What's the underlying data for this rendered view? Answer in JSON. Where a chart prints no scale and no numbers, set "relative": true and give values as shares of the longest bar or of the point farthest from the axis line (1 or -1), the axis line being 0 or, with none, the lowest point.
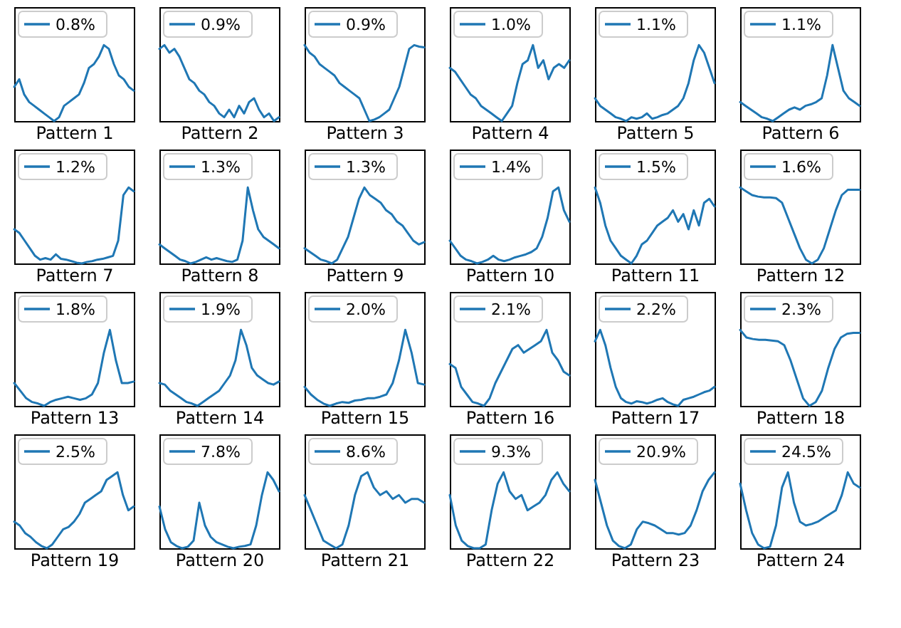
{
  "chart_data": [
    {
      "type": "line",
      "relative": true,
      "legend": "top left",
      "xlabel": "Pattern 1",
      "categories": [
        null,
        null,
        null,
        null,
        null,
        null,
        null,
        null,
        null,
        null,
        null,
        null,
        null,
        null,
        null,
        null,
        null,
        null,
        null,
        null,
        null,
        null,
        null,
        null,
        null
      ],
      "series": [
        {
          "name": "0.8%",
          "color": "#1f77b4",
          "values": [
            0.45,
            0.55,
            0.35,
            0.25,
            0.2,
            0.15,
            0.1,
            0.05,
            0.0,
            0.05,
            0.2,
            0.25,
            0.3,
            0.35,
            0.5,
            0.7,
            0.75,
            0.85,
            1.0,
            0.95,
            0.75,
            0.6,
            0.55,
            0.45,
            0.4
          ]
        }
      ]
    },
    {
      "type": "line",
      "relative": true,
      "legend": "top left",
      "xlabel": "Pattern 2",
      "categories": [
        null,
        null,
        null,
        null,
        null,
        null,
        null,
        null,
        null,
        null,
        null,
        null,
        null,
        null,
        null,
        null,
        null,
        null,
        null,
        null,
        null,
        null,
        null,
        null,
        null
      ],
      "series": [
        {
          "name": "0.9%",
          "color": "#1f77b4",
          "values": [
            0.95,
            1.0,
            0.9,
            0.95,
            0.85,
            0.7,
            0.55,
            0.5,
            0.4,
            0.35,
            0.25,
            0.2,
            0.1,
            0.05,
            0.15,
            0.05,
            0.2,
            0.1,
            0.25,
            0.3,
            0.15,
            0.05,
            0.1,
            0.0,
            0.05
          ]
        }
      ]
    },
    {
      "type": "line",
      "relative": true,
      "legend": "top left",
      "xlabel": "Pattern 3",
      "categories": [
        null,
        null,
        null,
        null,
        null,
        null,
        null,
        null,
        null,
        null,
        null,
        null,
        null,
        null,
        null,
        null,
        null,
        null,
        null,
        null,
        null,
        null,
        null,
        null,
        null
      ],
      "series": [
        {
          "name": "0.9%",
          "color": "#1f77b4",
          "values": [
            1.0,
            0.9,
            0.85,
            0.75,
            0.7,
            0.65,
            0.6,
            0.5,
            0.45,
            0.4,
            0.35,
            0.3,
            0.15,
            0.0,
            0.02,
            0.05,
            0.1,
            0.15,
            0.3,
            0.45,
            0.7,
            0.95,
            1.0,
            0.98,
            0.97
          ]
        }
      ]
    },
    {
      "type": "line",
      "relative": true,
      "legend": "top left",
      "xlabel": "Pattern 4",
      "categories": [
        null,
        null,
        null,
        null,
        null,
        null,
        null,
        null,
        null,
        null,
        null,
        null,
        null,
        null,
        null,
        null,
        null,
        null,
        null,
        null,
        null,
        null,
        null,
        null
      ],
      "series": [
        {
          "name": "1.0%",
          "color": "#1f77b4",
          "values": [
            0.7,
            0.65,
            0.55,
            0.45,
            0.35,
            0.3,
            0.2,
            0.15,
            0.1,
            0.05,
            0.0,
            0.1,
            0.2,
            0.5,
            0.75,
            0.8,
            1.0,
            0.7,
            0.8,
            0.55,
            0.7,
            0.75,
            0.7,
            0.8
          ]
        }
      ]
    },
    {
      "type": "line",
      "relative": true,
      "legend": "top left",
      "xlabel": "Pattern 5",
      "categories": [
        null,
        null,
        null,
        null,
        null,
        null,
        null,
        null,
        null,
        null,
        null,
        null,
        null,
        null,
        null,
        null,
        null,
        null,
        null,
        null,
        null,
        null,
        null,
        null
      ],
      "series": [
        {
          "name": "1.1%",
          "color": "#1f77b4",
          "values": [
            0.3,
            0.2,
            0.15,
            0.1,
            0.05,
            0.03,
            0.0,
            0.05,
            0.03,
            0.05,
            0.1,
            0.03,
            0.05,
            0.08,
            0.1,
            0.15,
            0.2,
            0.3,
            0.5,
            0.8,
            1.0,
            0.9,
            0.7,
            0.5
          ]
        }
      ]
    },
    {
      "type": "line",
      "relative": true,
      "legend": "top left",
      "xlabel": "Pattern 6",
      "categories": [
        null,
        null,
        null,
        null,
        null,
        null,
        null,
        null,
        null,
        null,
        null,
        null,
        null,
        null,
        null,
        null,
        null,
        null,
        null,
        null,
        null,
        null,
        null
      ],
      "series": [
        {
          "name": "1.1%",
          "color": "#1f77b4",
          "values": [
            0.25,
            0.2,
            0.15,
            0.1,
            0.05,
            0.03,
            0.0,
            0.05,
            0.1,
            0.15,
            0.18,
            0.15,
            0.2,
            0.22,
            0.25,
            0.3,
            0.6,
            1.0,
            0.7,
            0.4,
            0.3,
            0.25,
            0.2
          ]
        }
      ]
    },
    {
      "type": "line",
      "relative": true,
      "legend": "top left",
      "xlabel": "Pattern 7",
      "categories": [
        null,
        null,
        null,
        null,
        null,
        null,
        null,
        null,
        null,
        null,
        null,
        null,
        null,
        null,
        null,
        null,
        null,
        null,
        null,
        null,
        null,
        null,
        null,
        null
      ],
      "series": [
        {
          "name": "1.2%",
          "color": "#1f77b4",
          "values": [
            0.45,
            0.4,
            0.3,
            0.2,
            0.1,
            0.05,
            0.07,
            0.05,
            0.12,
            0.06,
            0.05,
            0.03,
            0.01,
            0.0,
            0.02,
            0.03,
            0.05,
            0.06,
            0.08,
            0.1,
            0.3,
            0.9,
            1.0,
            0.95
          ]
        }
      ]
    },
    {
      "type": "line",
      "relative": true,
      "legend": "top left",
      "xlabel": "Pattern 8",
      "categories": [
        null,
        null,
        null,
        null,
        null,
        null,
        null,
        null,
        null,
        null,
        null,
        null,
        null,
        null,
        null,
        null,
        null,
        null,
        null,
        null,
        null,
        null,
        null,
        null
      ],
      "series": [
        {
          "name": "1.3%",
          "color": "#1f77b4",
          "values": [
            0.25,
            0.2,
            0.15,
            0.1,
            0.05,
            0.03,
            0.0,
            0.02,
            0.05,
            0.08,
            0.05,
            0.07,
            0.05,
            0.03,
            0.02,
            0.05,
            0.3,
            1.0,
            0.7,
            0.45,
            0.35,
            0.3,
            0.25,
            0.2
          ]
        }
      ]
    },
    {
      "type": "line",
      "relative": true,
      "legend": "top left",
      "xlabel": "Pattern 9",
      "categories": [
        null,
        null,
        null,
        null,
        null,
        null,
        null,
        null,
        null,
        null,
        null,
        null,
        null,
        null,
        null,
        null,
        null,
        null,
        null,
        null,
        null,
        null,
        null
      ],
      "series": [
        {
          "name": "1.3%",
          "color": "#1f77b4",
          "values": [
            0.2,
            0.15,
            0.1,
            0.05,
            0.03,
            0.0,
            0.05,
            0.2,
            0.35,
            0.6,
            0.85,
            1.0,
            0.9,
            0.85,
            0.8,
            0.7,
            0.65,
            0.55,
            0.5,
            0.4,
            0.3,
            0.25,
            0.28
          ]
        }
      ]
    },
    {
      "type": "line",
      "relative": true,
      "legend": "top left",
      "xlabel": "Pattern 10",
      "categories": [
        null,
        null,
        null,
        null,
        null,
        null,
        null,
        null,
        null,
        null,
        null,
        null,
        null,
        null,
        null,
        null,
        null,
        null,
        null,
        null,
        null,
        null,
        null
      ],
      "series": [
        {
          "name": "1.4%",
          "color": "#1f77b4",
          "values": [
            0.3,
            0.2,
            0.1,
            0.05,
            0.03,
            0.0,
            0.02,
            0.05,
            0.1,
            0.05,
            0.03,
            0.05,
            0.08,
            0.1,
            0.12,
            0.15,
            0.2,
            0.35,
            0.6,
            0.95,
            1.0,
            0.7,
            0.55
          ]
        }
      ]
    },
    {
      "type": "line",
      "relative": true,
      "legend": "top left",
      "xlabel": "Pattern 11",
      "categories": [
        null,
        null,
        null,
        null,
        null,
        null,
        null,
        null,
        null,
        null,
        null,
        null,
        null,
        null,
        null,
        null,
        null,
        null,
        null,
        null,
        null,
        null,
        null,
        null
      ],
      "series": [
        {
          "name": "1.5%",
          "color": "#1f77b4",
          "values": [
            1.0,
            0.8,
            0.5,
            0.3,
            0.2,
            0.1,
            0.05,
            0.0,
            0.1,
            0.25,
            0.3,
            0.4,
            0.5,
            0.55,
            0.6,
            0.7,
            0.55,
            0.65,
            0.45,
            0.7,
            0.5,
            0.8,
            0.85,
            0.75
          ]
        }
      ]
    },
    {
      "type": "line",
      "relative": true,
      "legend": "top left",
      "xlabel": "Pattern 12",
      "categories": [
        null,
        null,
        null,
        null,
        null,
        null,
        null,
        null,
        null,
        null,
        null,
        null,
        null,
        null,
        null,
        null,
        null,
        null,
        null,
        null,
        null
      ],
      "series": [
        {
          "name": "1.6%",
          "color": "#1f77b4",
          "values": [
            1.0,
            0.95,
            0.9,
            0.88,
            0.87,
            0.87,
            0.86,
            0.8,
            0.6,
            0.4,
            0.2,
            0.05,
            0.0,
            0.05,
            0.2,
            0.45,
            0.7,
            0.9,
            0.97,
            0.97,
            0.97
          ]
        }
      ]
    },
    {
      "type": "line",
      "relative": true,
      "legend": "top left",
      "xlabel": "Pattern 13",
      "categories": [
        null,
        null,
        null,
        null,
        null,
        null,
        null,
        null,
        null,
        null,
        null,
        null,
        null,
        null,
        null,
        null,
        null,
        null,
        null,
        null,
        null
      ],
      "series": [
        {
          "name": "1.8%",
          "color": "#1f77b4",
          "values": [
            0.3,
            0.2,
            0.1,
            0.05,
            0.03,
            0.0,
            0.05,
            0.08,
            0.1,
            0.12,
            0.1,
            0.08,
            0.1,
            0.15,
            0.3,
            0.7,
            1.0,
            0.6,
            0.3,
            0.3,
            0.32
          ]
        }
      ]
    },
    {
      "type": "line",
      "relative": true,
      "legend": "top left",
      "xlabel": "Pattern 14",
      "categories": [
        null,
        null,
        null,
        null,
        null,
        null,
        null,
        null,
        null,
        null,
        null,
        null,
        null,
        null,
        null,
        null,
        null,
        null,
        null,
        null,
        null,
        null,
        null
      ],
      "series": [
        {
          "name": "1.9%",
          "color": "#1f77b4",
          "values": [
            0.3,
            0.28,
            0.2,
            0.15,
            0.1,
            0.05,
            0.03,
            0.0,
            0.05,
            0.1,
            0.15,
            0.2,
            0.3,
            0.4,
            0.6,
            1.0,
            0.8,
            0.5,
            0.4,
            0.35,
            0.3,
            0.28,
            0.32
          ]
        }
      ]
    },
    {
      "type": "line",
      "relative": true,
      "legend": "top left",
      "xlabel": "Pattern 15",
      "categories": [
        null,
        null,
        null,
        null,
        null,
        null,
        null,
        null,
        null,
        null,
        null,
        null,
        null,
        null,
        null,
        null,
        null,
        null,
        null,
        null
      ],
      "series": [
        {
          "name": "2.0%",
          "color": "#1f77b4",
          "values": [
            0.25,
            0.15,
            0.08,
            0.03,
            0.0,
            0.03,
            0.05,
            0.04,
            0.07,
            0.08,
            0.1,
            0.1,
            0.12,
            0.15,
            0.3,
            0.6,
            1.0,
            0.7,
            0.3,
            0.28
          ]
        }
      ]
    },
    {
      "type": "line",
      "relative": true,
      "legend": "top left",
      "xlabel": "Pattern 16",
      "categories": [
        null,
        null,
        null,
        null,
        null,
        null,
        null,
        null,
        null,
        null,
        null,
        null,
        null,
        null,
        null,
        null,
        null,
        null,
        null,
        null,
        null,
        null
      ],
      "series": [
        {
          "name": "2.1%",
          "color": "#1f77b4",
          "values": [
            0.55,
            0.5,
            0.25,
            0.15,
            0.05,
            0.03,
            0.0,
            0.1,
            0.3,
            0.45,
            0.6,
            0.75,
            0.8,
            0.7,
            0.75,
            0.8,
            0.85,
            1.0,
            0.7,
            0.6,
            0.45,
            0.4
          ]
        }
      ]
    },
    {
      "type": "line",
      "relative": true,
      "legend": "top left",
      "xlabel": "Pattern 17",
      "categories": [
        null,
        null,
        null,
        null,
        null,
        null,
        null,
        null,
        null,
        null,
        null,
        null,
        null,
        null,
        null,
        null,
        null,
        null,
        null,
        null,
        null,
        null,
        null,
        null
      ],
      "series": [
        {
          "name": "2.2%",
          "color": "#1f77b4",
          "values": [
            0.85,
            1.0,
            0.8,
            0.5,
            0.25,
            0.1,
            0.05,
            0.03,
            0.06,
            0.05,
            0.03,
            0.05,
            0.08,
            0.1,
            0.05,
            0.02,
            0.0,
            0.08,
            0.1,
            0.12,
            0.15,
            0.18,
            0.2,
            0.25
          ]
        }
      ]
    },
    {
      "type": "line",
      "relative": true,
      "legend": "top left",
      "xlabel": "Pattern 18",
      "categories": [
        null,
        null,
        null,
        null,
        null,
        null,
        null,
        null,
        null,
        null,
        null,
        null,
        null,
        null,
        null,
        null,
        null,
        null,
        null,
        null
      ],
      "series": [
        {
          "name": "2.3%",
          "color": "#1f77b4",
          "values": [
            1.0,
            0.9,
            0.88,
            0.87,
            0.87,
            0.86,
            0.85,
            0.8,
            0.6,
            0.35,
            0.1,
            0.0,
            0.05,
            0.2,
            0.5,
            0.75,
            0.9,
            0.95,
            0.96,
            0.96
          ]
        }
      ]
    },
    {
      "type": "line",
      "relative": true,
      "legend": "top left",
      "xlabel": "Pattern 19",
      "categories": [
        null,
        null,
        null,
        null,
        null,
        null,
        null,
        null,
        null,
        null,
        null,
        null,
        null,
        null,
        null,
        null,
        null,
        null,
        null,
        null,
        null,
        null,
        null
      ],
      "series": [
        {
          "name": "2.5%",
          "color": "#1f77b4",
          "values": [
            0.35,
            0.3,
            0.2,
            0.15,
            0.08,
            0.03,
            0.0,
            0.05,
            0.15,
            0.25,
            0.28,
            0.35,
            0.45,
            0.6,
            0.65,
            0.7,
            0.75,
            0.9,
            0.95,
            1.0,
            0.7,
            0.5,
            0.55
          ]
        }
      ]
    },
    {
      "type": "line",
      "relative": true,
      "legend": "top left",
      "xlabel": "Pattern 20",
      "categories": [
        null,
        null,
        null,
        null,
        null,
        null,
        null,
        null,
        null,
        null,
        null,
        null,
        null,
        null,
        null,
        null,
        null,
        null,
        null,
        null,
        null,
        null
      ],
      "series": [
        {
          "name": "7.8%",
          "color": "#1f77b4",
          "values": [
            0.55,
            0.25,
            0.08,
            0.03,
            0.0,
            0.02,
            0.1,
            0.6,
            0.3,
            0.15,
            0.08,
            0.05,
            0.02,
            0.0,
            0.02,
            0.03,
            0.05,
            0.3,
            0.7,
            1.0,
            0.9,
            0.75
          ]
        }
      ]
    },
    {
      "type": "line",
      "relative": true,
      "legend": "top left",
      "xlabel": "Pattern 21",
      "categories": [
        null,
        null,
        null,
        null,
        null,
        null,
        null,
        null,
        null,
        null,
        null,
        null,
        null,
        null,
        null,
        null,
        null,
        null,
        null,
        null
      ],
      "series": [
        {
          "name": "8.6%",
          "color": "#1f77b4",
          "values": [
            0.7,
            0.5,
            0.3,
            0.1,
            0.05,
            0.0,
            0.05,
            0.3,
            0.7,
            0.95,
            1.0,
            0.8,
            0.7,
            0.75,
            0.65,
            0.7,
            0.6,
            0.65,
            0.65,
            0.6
          ]
        }
      ]
    },
    {
      "type": "line",
      "relative": true,
      "legend": "top left",
      "xlabel": "Pattern 22",
      "categories": [
        null,
        null,
        null,
        null,
        null,
        null,
        null,
        null,
        null,
        null,
        null,
        null,
        null,
        null,
        null,
        null,
        null,
        null,
        null,
        null,
        null
      ],
      "series": [
        {
          "name": "9.3%",
          "color": "#1f77b4",
          "values": [
            0.7,
            0.3,
            0.1,
            0.03,
            0.0,
            0.0,
            0.05,
            0.5,
            0.85,
            1.0,
            0.75,
            0.65,
            0.7,
            0.5,
            0.55,
            0.6,
            0.7,
            0.9,
            1.0,
            0.85,
            0.75
          ]
        }
      ]
    },
    {
      "type": "line",
      "relative": true,
      "legend": "top left",
      "xlabel": "Pattern 23",
      "categories": [
        null,
        null,
        null,
        null,
        null,
        null,
        null,
        null,
        null,
        null,
        null,
        null,
        null,
        null,
        null,
        null,
        null,
        null,
        null,
        null,
        null
      ],
      "series": [
        {
          "name": "20.9%",
          "color": "#1f77b4",
          "values": [
            0.9,
            0.6,
            0.3,
            0.1,
            0.03,
            0.0,
            0.05,
            0.25,
            0.35,
            0.33,
            0.3,
            0.25,
            0.2,
            0.2,
            0.18,
            0.2,
            0.3,
            0.5,
            0.75,
            0.9,
            1.0
          ]
        }
      ]
    },
    {
      "type": "line",
      "relative": true,
      "legend": "top left",
      "xlabel": "Pattern 24",
      "categories": [
        null,
        null,
        null,
        null,
        null,
        null,
        null,
        null,
        null,
        null,
        null,
        null,
        null,
        null,
        null,
        null,
        null,
        null,
        null,
        null,
        null
      ],
      "series": [
        {
          "name": "24.5%",
          "color": "#1f77b4",
          "values": [
            0.85,
            0.5,
            0.2,
            0.05,
            0.0,
            0.02,
            0.3,
            0.8,
            1.0,
            0.6,
            0.35,
            0.3,
            0.32,
            0.35,
            0.4,
            0.45,
            0.5,
            0.7,
            1.0,
            0.85,
            0.8
          ]
        }
      ]
    }
  ]
}
